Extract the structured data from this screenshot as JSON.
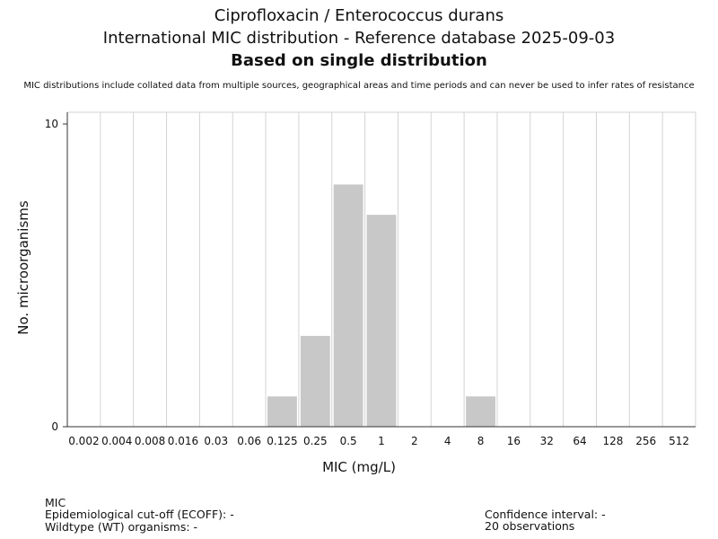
{
  "header": {
    "title_line1": "Ciprofloxacin / Enterococcus durans",
    "title_line2": "International MIC distribution - Reference database 2025-09-03",
    "title_line3": "Based on single distribution",
    "disclaimer": "MIC distributions include collated data from multiple sources, geographical areas and time periods and can never be used to infer rates of resistance"
  },
  "chart_data": {
    "type": "bar",
    "title": "Ciprofloxacin / Enterococcus durans",
    "xlabel": "MIC (mg/L)",
    "ylabel": "No. microorganisms",
    "categories": [
      "0.002",
      "0.004",
      "0.008",
      "0.016",
      "0.03",
      "0.06",
      "0.125",
      "0.25",
      "0.5",
      "1",
      "2",
      "4",
      "8",
      "16",
      "32",
      "64",
      "128",
      "256",
      "512"
    ],
    "values": [
      0,
      0,
      0,
      0,
      0,
      0,
      1,
      3,
      8,
      7,
      0,
      0,
      1,
      0,
      0,
      0,
      0,
      0,
      0
    ],
    "ylim": [
      0,
      10
    ],
    "yticks": [
      "0",
      "10"
    ],
    "grid": true,
    "bar_color": "#c8c8c8",
    "grid_color": "#d3d3d3"
  },
  "footer": {
    "mic_label": "MIC",
    "ecoff_label": "Epidemiological cut-off (ECOFF): -",
    "wt_label": "Wildtype (WT) organisms:  -",
    "ci_label": "Confidence interval: -",
    "observations_label": "20 observations"
  }
}
